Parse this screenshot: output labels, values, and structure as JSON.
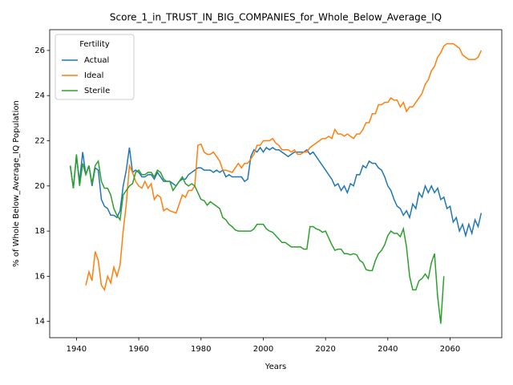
{
  "chart_data": {
    "type": "line",
    "title": "Score_1_in_TRUST_IN_BIG_COMPANIES_for_Whole_Below_Average_IQ",
    "x_label": "Years",
    "y_label": "% of Whole Below_Average_IQ Population",
    "legend_title": "Fertility",
    "legend": "upper left",
    "xlim": [
      1931.4,
      2076.6
    ],
    "xticks": [
      1940,
      1960,
      1980,
      2000,
      2020,
      2040,
      2060
    ],
    "ylim": [
      13.28,
      26.92
    ],
    "yticks": [
      14,
      16,
      18,
      20,
      22,
      24,
      26
    ],
    "x": [
      1938,
      1939,
      1940,
      1941,
      1942,
      1943,
      1944,
      1945,
      1946,
      1947,
      1948,
      1949,
      1950,
      1951,
      1952,
      1953,
      1954,
      1955,
      1956,
      1957,
      1958,
      1959,
      1960,
      1961,
      1962,
      1963,
      1964,
      1965,
      1966,
      1967,
      1968,
      1969,
      1970,
      1971,
      1972,
      1973,
      1974,
      1975,
      1976,
      1977,
      1978,
      1979,
      1980,
      1981,
      1982,
      1983,
      1984,
      1985,
      1986,
      1987,
      1988,
      1989,
      1990,
      1991,
      1992,
      1993,
      1994,
      1995,
      1996,
      1997,
      1998,
      1999,
      2000,
      2001,
      2002,
      2003,
      2004,
      2005,
      2006,
      2007,
      2008,
      2009,
      2010,
      2011,
      2012,
      2013,
      2014,
      2015,
      2016,
      2017,
      2018,
      2019,
      2020,
      2021,
      2022,
      2023,
      2024,
      2025,
      2026,
      2027,
      2028,
      2029,
      2030,
      2031,
      2032,
      2033,
      2034,
      2035,
      2036,
      2037,
      2038,
      2039,
      2040,
      2041,
      2042,
      2043,
      2044,
      2045,
      2046,
      2047,
      2048,
      2049,
      2050,
      2051,
      2052,
      2053,
      2054,
      2055,
      2056,
      2057,
      2058,
      2059,
      2060,
      2061,
      2062,
      2063,
      2064,
      2065,
      2066,
      2067,
      2068,
      2069,
      2070
    ],
    "series": [
      {
        "name": "Actual",
        "color": "#1f77b4",
        "values": [
          20.9,
          19.9,
          21.3,
          20.2,
          21.5,
          20.5,
          20.9,
          20.0,
          20.8,
          20.7,
          19.4,
          19.1,
          19.0,
          18.7,
          18.7,
          18.6,
          18.9,
          20.0,
          20.7,
          21.7,
          20.6,
          20.7,
          20.6,
          20.4,
          20.4,
          20.5,
          20.5,
          20.3,
          20.6,
          20.4,
          20.2,
          20.2,
          20.2,
          20.1,
          20.0,
          20.2,
          20.3,
          20.3,
          20.5,
          20.6,
          20.7,
          20.8,
          20.8,
          20.7,
          20.7,
          20.7,
          20.6,
          20.7,
          20.6,
          20.7,
          20.4,
          20.5,
          20.4,
          20.4,
          20.4,
          20.4,
          20.2,
          20.3,
          21.3,
          21.6,
          21.5,
          21.7,
          21.5,
          21.7,
          21.6,
          21.7,
          21.6,
          21.6,
          21.5,
          21.4,
          21.3,
          21.4,
          21.5,
          21.5,
          21.5,
          21.5,
          21.6,
          21.4,
          21.5,
          21.3,
          21.1,
          20.9,
          20.7,
          20.5,
          20.3,
          20.0,
          20.1,
          19.8,
          20.0,
          19.7,
          20.1,
          20.0,
          20.5,
          20.5,
          20.9,
          20.8,
          21.1,
          21.0,
          21.0,
          20.8,
          20.7,
          20.4,
          20.0,
          19.8,
          19.4,
          19.1,
          19.0,
          18.7,
          18.9,
          18.6,
          19.2,
          19.0,
          19.7,
          19.5,
          20.0,
          19.7,
          20.0,
          19.7,
          19.9,
          19.4,
          19.5,
          19.0,
          19.1,
          18.4,
          18.6,
          18.0,
          18.3,
          17.8,
          18.3,
          17.9,
          18.5,
          18.2,
          18.8
        ]
      },
      {
        "name": "Ideal",
        "color": "#ff7f0e",
        "values": [
          null,
          null,
          null,
          null,
          null,
          15.6,
          16.2,
          15.8,
          17.1,
          16.7,
          15.6,
          15.4,
          16.0,
          15.7,
          16.4,
          16.0,
          16.5,
          18.0,
          19.2,
          20.9,
          20.6,
          20.2,
          20.0,
          19.9,
          20.2,
          19.9,
          20.1,
          19.4,
          19.6,
          19.5,
          18.9,
          19.0,
          18.9,
          18.85,
          18.8,
          19.2,
          19.6,
          19.5,
          19.8,
          19.8,
          20.0,
          21.8,
          21.85,
          21.5,
          21.4,
          21.4,
          21.5,
          21.3,
          21.1,
          20.7,
          20.7,
          20.65,
          20.6,
          20.8,
          21.0,
          20.8,
          21.0,
          21.0,
          21.2,
          21.4,
          21.8,
          21.8,
          22.0,
          22.0,
          22.0,
          22.1,
          21.9,
          21.8,
          21.6,
          21.6,
          21.6,
          21.5,
          21.6,
          21.4,
          21.4,
          21.5,
          21.5,
          21.7,
          21.8,
          21.9,
          22.0,
          22.1,
          22.1,
          22.2,
          22.1,
          22.5,
          22.3,
          22.3,
          22.2,
          22.3,
          22.2,
          22.1,
          22.3,
          22.3,
          22.5,
          22.8,
          22.8,
          23.2,
          23.2,
          23.6,
          23.6,
          23.7,
          23.7,
          23.9,
          23.8,
          23.8,
          23.5,
          23.7,
          23.3,
          23.5,
          23.5,
          23.7,
          23.9,
          24.1,
          24.5,
          24.7,
          25.1,
          25.3,
          25.7,
          25.9,
          26.2,
          26.3,
          26.3,
          26.3,
          26.2,
          26.1,
          25.8,
          25.7,
          25.6,
          25.6,
          25.6,
          25.7,
          26.0
        ]
      },
      {
        "name": "Sterile",
        "color": "#2ca02c",
        "values": [
          20.9,
          19.9,
          21.4,
          20.0,
          21.0,
          20.5,
          20.9,
          20.1,
          20.9,
          21.1,
          20.2,
          19.9,
          19.9,
          19.6,
          19.0,
          18.7,
          18.5,
          19.6,
          19.8,
          20.0,
          20.1,
          20.6,
          20.7,
          20.5,
          20.5,
          20.6,
          20.6,
          20.4,
          20.7,
          20.6,
          20.3,
          20.2,
          20.2,
          19.8,
          20.0,
          20.2,
          20.4,
          20.1,
          20.0,
          20.1,
          20.0,
          19.7,
          19.4,
          19.35,
          19.15,
          19.3,
          19.2,
          19.1,
          19.0,
          18.6,
          18.5,
          18.3,
          18.2,
          18.05,
          18.0,
          18.0,
          18.0,
          18.0,
          18.0,
          18.1,
          18.3,
          18.3,
          18.3,
          18.1,
          18.0,
          17.95,
          17.8,
          17.65,
          17.5,
          17.5,
          17.4,
          17.3,
          17.3,
          17.3,
          17.3,
          17.2,
          17.2,
          18.2,
          18.2,
          18.1,
          18.05,
          17.95,
          18.0,
          17.7,
          17.4,
          17.15,
          17.2,
          17.2,
          17.0,
          17.0,
          16.95,
          17.0,
          16.95,
          16.7,
          16.6,
          16.3,
          16.25,
          16.25,
          16.7,
          17.0,
          17.15,
          17.4,
          17.8,
          18.0,
          17.9,
          17.9,
          17.75,
          18.1,
          17.3,
          16.0,
          15.4,
          15.4,
          15.8,
          15.9,
          16.1,
          15.9,
          16.6,
          17.0,
          15.1,
          13.9,
          16.0,
          null,
          null,
          null,
          null,
          null,
          null,
          null,
          null,
          null,
          null,
          null,
          null
        ]
      }
    ]
  }
}
